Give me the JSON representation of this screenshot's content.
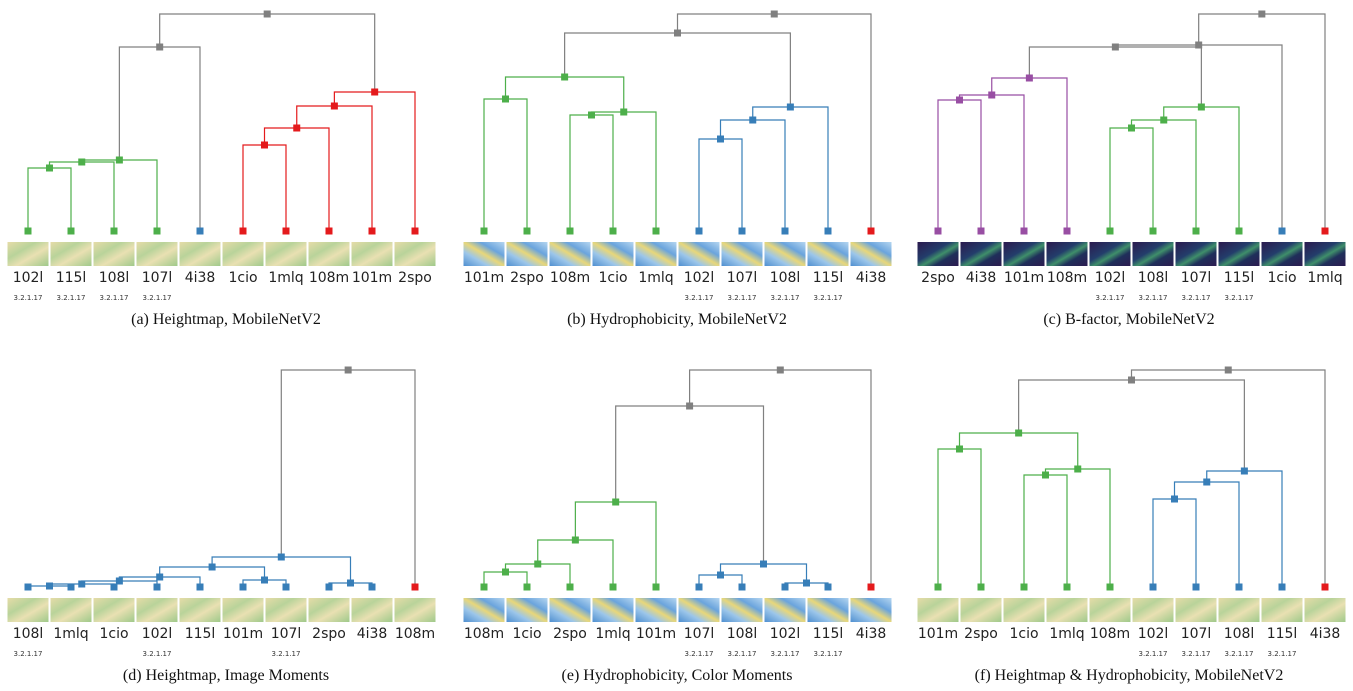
{
  "panels": [
    {
      "caption": "(a) Heightmap, MobileNetV2",
      "leaves": [
        {
          "label": "102l",
          "sublabel": "3.2.1.17"
        },
        {
          "label": "115l",
          "sublabel": "3.2.1.17"
        },
        {
          "label": "108l",
          "sublabel": "3.2.1.17"
        },
        {
          "label": "107l",
          "sublabel": "3.2.1.17"
        },
        {
          "label": "4i38"
        },
        {
          "label": "1cio"
        },
        {
          "label": "1mlq"
        },
        {
          "label": "108m"
        },
        {
          "label": "101m"
        },
        {
          "label": "2spo"
        }
      ]
    },
    {
      "caption": "(b) Hydrophobicity, MobileNetV2",
      "leaves": [
        {
          "label": "101m"
        },
        {
          "label": "2spo"
        },
        {
          "label": "108m"
        },
        {
          "label": "1cio"
        },
        {
          "label": "1mlq"
        },
        {
          "label": "102l",
          "sublabel": "3.2.1.17"
        },
        {
          "label": "107l",
          "sublabel": "3.2.1.17"
        },
        {
          "label": "108l",
          "sublabel": "3.2.1.17"
        },
        {
          "label": "115l",
          "sublabel": "3.2.1.17"
        },
        {
          "label": "4i38"
        }
      ]
    },
    {
      "caption": "(c) B-factor, MobileNetV2",
      "leaves": [
        {
          "label": "2spo"
        },
        {
          "label": "4i38"
        },
        {
          "label": "101m"
        },
        {
          "label": "108m"
        },
        {
          "label": "102l",
          "sublabel": "3.2.1.17"
        },
        {
          "label": "108l",
          "sublabel": "3.2.1.17"
        },
        {
          "label": "107l",
          "sublabel": "3.2.1.17"
        },
        {
          "label": "115l",
          "sublabel": "3.2.1.17"
        },
        {
          "label": "1cio"
        },
        {
          "label": "1mlq"
        }
      ]
    },
    {
      "caption": "(d) Heightmap, Image Moments",
      "leaves": [
        {
          "label": "108l",
          "sublabel": "3.2.1.17"
        },
        {
          "label": "1mlq"
        },
        {
          "label": "1cio"
        },
        {
          "label": "102l",
          "sublabel": "3.2.1.17"
        },
        {
          "label": "115l"
        },
        {
          "label": "101m"
        },
        {
          "label": "107l",
          "sublabel": "3.2.1.17"
        },
        {
          "label": "2spo"
        },
        {
          "label": "4i38"
        },
        {
          "label": "108m"
        }
      ]
    },
    {
      "caption": "(e) Hydrophobicity, Color Moments",
      "leaves": [
        {
          "label": "108m"
        },
        {
          "label": "1cio"
        },
        {
          "label": "2spo"
        },
        {
          "label": "1mlq"
        },
        {
          "label": "101m"
        },
        {
          "label": "107l",
          "sublabel": "3.2.1.17"
        },
        {
          "label": "108l",
          "sublabel": "3.2.1.17"
        },
        {
          "label": "102l",
          "sublabel": "3.2.1.17"
        },
        {
          "label": "115l",
          "sublabel": "3.2.1.17"
        },
        {
          "label": "4i38"
        }
      ]
    },
    {
      "caption": "(f) Heightmap & Hydrophobicity, MobileNetV2",
      "leaves": [
        {
          "label": "101m"
        },
        {
          "label": "2spo"
        },
        {
          "label": "1cio"
        },
        {
          "label": "1mlq"
        },
        {
          "label": "108m"
        },
        {
          "label": "102l",
          "sublabel": "3.2.1.17"
        },
        {
          "label": "107l",
          "sublabel": "3.2.1.17"
        },
        {
          "label": "108l",
          "sublabel": "3.2.1.17"
        },
        {
          "label": "115l",
          "sublabel": "3.2.1.17"
        },
        {
          "label": "4i38"
        }
      ]
    }
  ]
}
